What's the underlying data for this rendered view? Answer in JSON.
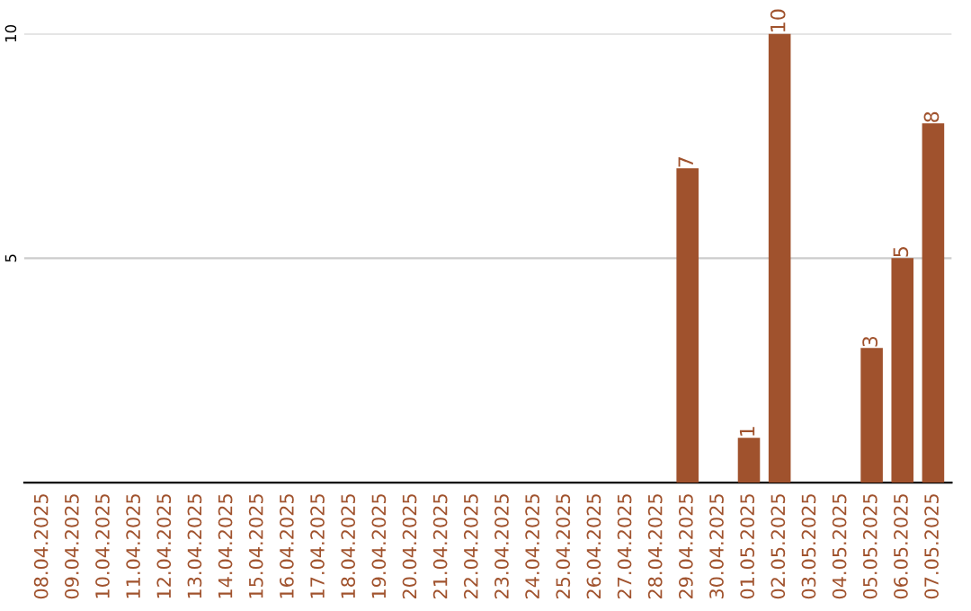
{
  "chart_data": {
    "type": "bar",
    "categories": [
      "08.04.2025",
      "09.04.2025",
      "10.04.2025",
      "11.04.2025",
      "12.04.2025",
      "13.04.2025",
      "14.04.2025",
      "15.04.2025",
      "16.04.2025",
      "17.04.2025",
      "18.04.2025",
      "19.04.2025",
      "20.04.2025",
      "21.04.2025",
      "22.04.2025",
      "23.04.2025",
      "24.04.2025",
      "25.04.2025",
      "26.04.2025",
      "27.04.2025",
      "28.04.2025",
      "29.04.2025",
      "30.04.2025",
      "01.05.2025",
      "02.05.2025",
      "03.05.2025",
      "04.05.2025",
      "05.05.2025",
      "06.05.2025",
      "07.05.2025"
    ],
    "values": [
      0,
      0,
      0,
      0,
      0,
      0,
      0,
      0,
      0,
      0,
      0,
      0,
      0,
      0,
      0,
      0,
      0,
      0,
      0,
      0,
      0,
      7,
      0,
      1,
      10,
      0,
      0,
      3,
      5,
      8
    ],
    "value_labels": [
      null,
      null,
      null,
      null,
      null,
      null,
      null,
      null,
      null,
      null,
      null,
      null,
      null,
      null,
      null,
      null,
      null,
      null,
      null,
      null,
      null,
      "7",
      null,
      "1",
      "10",
      null,
      null,
      "3",
      "5",
      "8"
    ],
    "color": "#a0522d",
    "ylim": [
      0,
      10
    ],
    "yticks": [
      5,
      10
    ],
    "grid": "y",
    "legend": false
  }
}
